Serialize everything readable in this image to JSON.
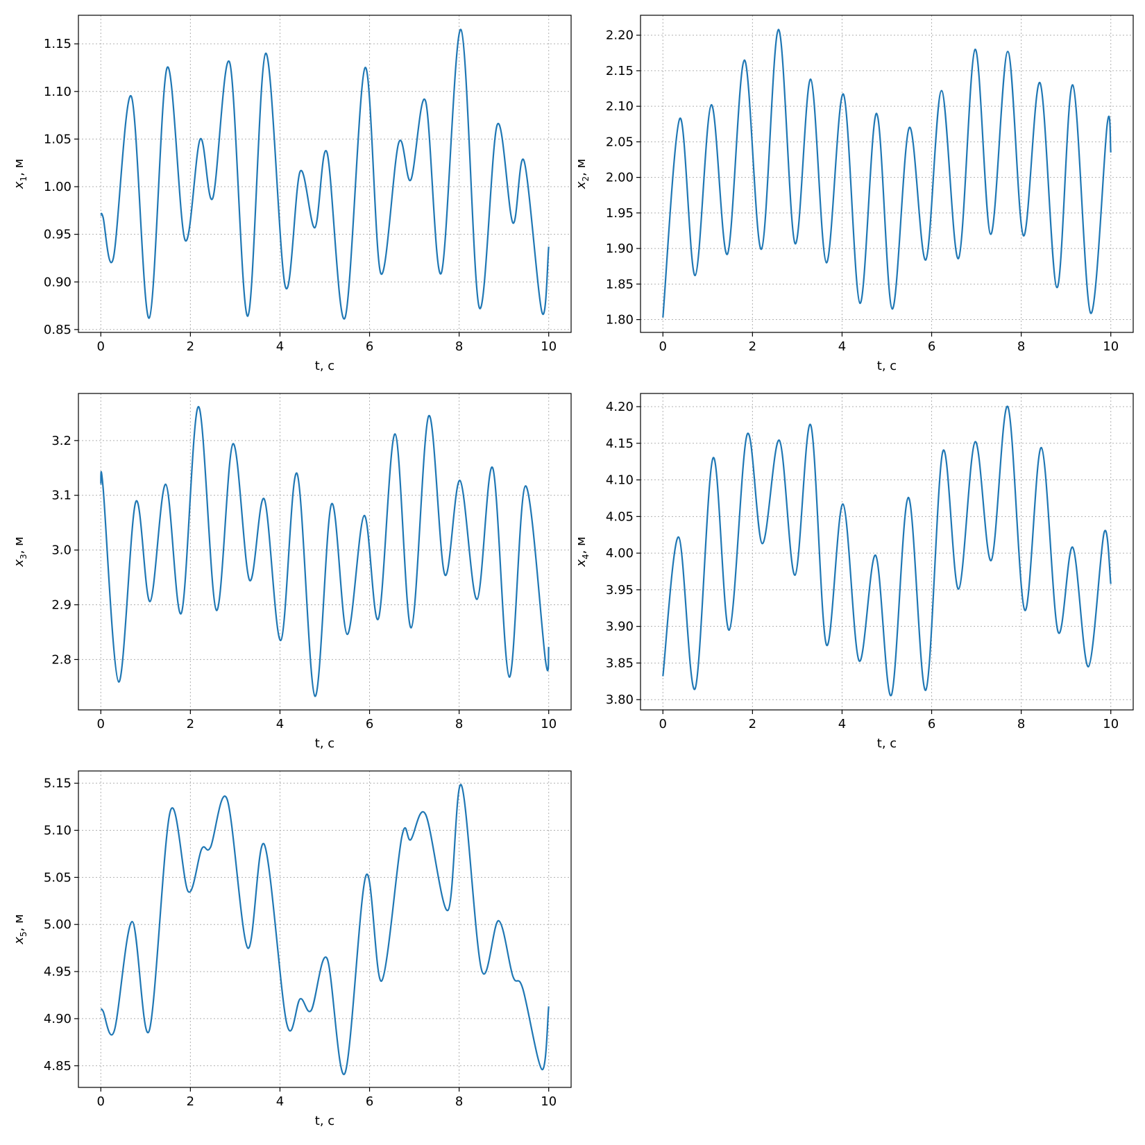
{
  "chart_data": [
    {
      "type": "line",
      "xlabel": "t, с",
      "ylabel": {
        "var": "x",
        "sub": "1",
        "unit": ", м"
      },
      "xlim": [
        -0.5,
        10.5
      ],
      "ylim": [
        0.847,
        1.18
      ],
      "xticks": [
        0,
        2,
        4,
        6,
        8,
        10
      ],
      "yticks": [
        0.85,
        0.9,
        0.95,
        1.0,
        1.05,
        1.1,
        1.15
      ],
      "grid": true,
      "color": "#1f77b4",
      "series": [
        {
          "x": [
            0,
            0.05,
            0.28,
            0.68,
            1.08,
            1.48,
            1.88,
            2.22,
            2.5,
            2.88,
            3.28,
            3.68,
            4.12,
            4.45,
            4.78,
            5.05,
            5.45,
            5.9,
            6.25,
            6.65,
            6.92,
            7.25,
            7.6,
            8.04,
            8.45,
            8.85,
            9.2,
            9.45,
            9.85,
            10.0
          ],
          "y": [
            0.97,
            0.968,
            0.925,
            1.095,
            0.862,
            1.125,
            0.944,
            1.05,
            0.988,
            1.13,
            0.864,
            1.14,
            0.895,
            1.016,
            0.957,
            1.036,
            0.862,
            1.125,
            0.909,
            1.046,
            1.007,
            1.09,
            0.909,
            1.165,
            0.873,
            1.065,
            0.962,
            1.027,
            0.868,
            0.937
          ]
        }
      ]
    },
    {
      "type": "line",
      "xlabel": "t, с",
      "ylabel": {
        "var": "x",
        "sub": "2",
        "unit": ", м"
      },
      "xlim": [
        -0.5,
        10.5
      ],
      "ylim": [
        1.782,
        2.228
      ],
      "xticks": [
        0,
        2,
        4,
        6,
        8,
        10
      ],
      "yticks": [
        1.8,
        1.85,
        1.9,
        1.95,
        2.0,
        2.05,
        2.1,
        2.15,
        2.2
      ],
      "grid": true,
      "color": "#1f77b4",
      "series": [
        {
          "x": [
            0,
            0.38,
            0.72,
            1.08,
            1.44,
            1.82,
            2.2,
            2.58,
            2.95,
            3.3,
            3.65,
            4.03,
            4.4,
            4.77,
            5.12,
            5.5,
            5.87,
            6.22,
            6.6,
            6.97,
            7.32,
            7.7,
            8.05,
            8.42,
            8.8,
            9.15,
            9.55,
            9.92,
            10.0
          ],
          "y": [
            1.803,
            2.083,
            1.862,
            2.102,
            1.892,
            2.165,
            1.899,
            2.208,
            1.907,
            2.138,
            1.88,
            2.117,
            1.823,
            2.09,
            1.815,
            2.07,
            1.884,
            2.122,
            1.886,
            2.18,
            1.92,
            2.177,
            1.918,
            2.133,
            1.845,
            2.13,
            1.809,
            2.075,
            2.035
          ]
        }
      ]
    },
    {
      "type": "line",
      "xlabel": "t, с",
      "ylabel": {
        "var": "x",
        "sub": "3",
        "unit": ", м"
      },
      "xlim": [
        -0.5,
        10.5
      ],
      "ylim": [
        2.708,
        3.286
      ],
      "xticks": [
        0,
        2,
        4,
        6,
        8,
        10
      ],
      "yticks": [
        2.8,
        2.9,
        3.0,
        3.1,
        3.2
      ],
      "grid": true,
      "color": "#1f77b4",
      "series": [
        {
          "x": [
            0,
            0.05,
            0.4,
            0.78,
            1.1,
            1.45,
            1.8,
            2.18,
            2.58,
            2.95,
            3.32,
            3.65,
            4.02,
            4.38,
            4.78,
            5.15,
            5.5,
            5.88,
            6.2,
            6.57,
            6.93,
            7.32,
            7.68,
            8.02,
            8.4,
            8.75,
            9.12,
            9.48,
            9.93,
            10.0
          ],
          "y": [
            3.12,
            3.115,
            2.759,
            3.088,
            2.906,
            3.12,
            2.885,
            3.262,
            2.89,
            3.194,
            2.945,
            3.093,
            2.835,
            3.14,
            2.733,
            3.084,
            2.846,
            3.063,
            2.875,
            3.212,
            2.858,
            3.245,
            2.955,
            3.127,
            2.91,
            3.15,
            2.768,
            3.117,
            2.797,
            2.823
          ]
        }
      ]
    },
    {
      "type": "line",
      "xlabel": "t, с",
      "ylabel": {
        "var": "x",
        "sub": "4",
        "unit": ", м"
      },
      "xlim": [
        -0.5,
        10.5
      ],
      "ylim": [
        3.786,
        4.218
      ],
      "xticks": [
        0,
        2,
        4,
        6,
        8,
        10
      ],
      "yticks": [
        3.8,
        3.85,
        3.9,
        3.95,
        4.0,
        4.05,
        4.1,
        4.15,
        4.2
      ],
      "grid": true,
      "color": "#1f77b4",
      "series": [
        {
          "x": [
            0,
            0.35,
            0.72,
            1.12,
            1.48,
            1.88,
            2.22,
            2.6,
            2.95,
            3.3,
            3.65,
            4.02,
            4.38,
            4.75,
            5.1,
            5.48,
            5.87,
            6.25,
            6.6,
            6.97,
            7.33,
            7.7,
            8.08,
            8.45,
            8.82,
            9.15,
            9.5,
            9.85,
            10.0
          ],
          "y": [
            3.832,
            4.022,
            3.815,
            4.13,
            3.895,
            4.162,
            4.013,
            4.154,
            3.97,
            4.175,
            3.875,
            4.067,
            3.853,
            3.997,
            3.806,
            4.076,
            3.813,
            4.139,
            3.951,
            4.152,
            3.99,
            4.2,
            3.922,
            4.144,
            3.893,
            4.008,
            3.845,
            4.028,
            3.958
          ]
        }
      ]
    },
    {
      "type": "line",
      "xlabel": "t, с",
      "ylabel": {
        "var": "x",
        "sub": "5",
        "unit": ", м"
      },
      "xlim": [
        -0.5,
        10.5
      ],
      "ylim": [
        4.827,
        5.163
      ],
      "xticks": [
        0,
        2,
        4,
        6,
        8,
        10
      ],
      "yticks": [
        4.85,
        4.9,
        4.95,
        5.0,
        5.05,
        5.1,
        5.15
      ],
      "grid": true,
      "color": "#1f77b4",
      "series": [
        {
          "x": [
            0,
            0.05,
            0.3,
            0.7,
            1.08,
            1.55,
            1.95,
            2.25,
            2.45,
            2.82,
            3.28,
            3.65,
            4.15,
            4.45,
            4.7,
            5.05,
            5.45,
            5.92,
            6.27,
            6.72,
            6.92,
            7.25,
            7.75,
            8.05,
            8.5,
            8.88,
            9.2,
            9.42,
            9.85,
            10.0
          ],
          "y": [
            4.91,
            4.908,
            4.887,
            5.003,
            4.887,
            5.12,
            5.035,
            5.08,
            5.082,
            5.133,
            4.975,
            5.085,
            4.895,
            4.921,
            4.909,
            4.964,
            4.842,
            5.052,
            4.94,
            5.093,
            5.09,
            5.117,
            5.015,
            5.148,
            4.952,
            5.004,
            4.945,
            4.932,
            4.846,
            4.913
          ]
        }
      ]
    }
  ]
}
